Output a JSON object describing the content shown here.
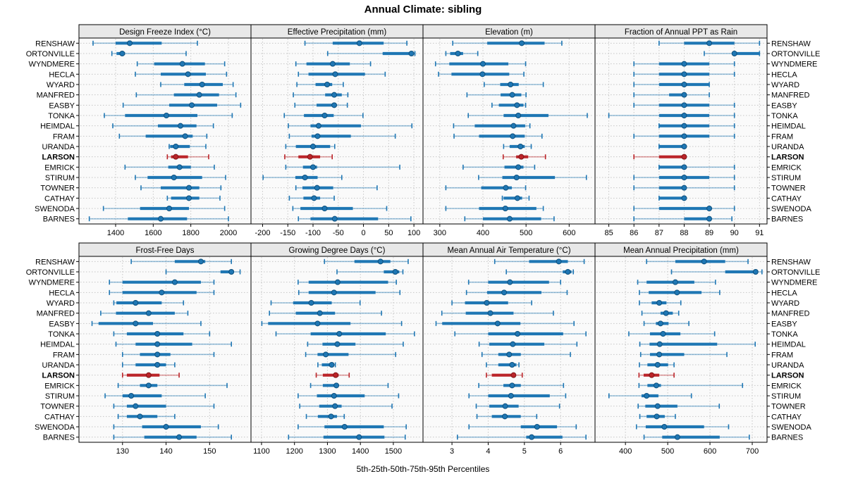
{
  "title": "Annual Climate: sibling",
  "footer": "5th-25th-50th-75th-95th Percentiles",
  "chart_data": {
    "type": "dotplot-percentiles",
    "title": "Annual Climate: sibling",
    "xlabel": "5th-25th-50th-75th-95th Percentiles",
    "percentiles": [
      "5th",
      "25th",
      "50th",
      "75th",
      "95th"
    ],
    "highlight_station": "LARSON",
    "colors": {
      "series": "#1f77b4",
      "series_dark": "#0d4f7c",
      "highlight": "#bb2429",
      "highlight_dark": "#7e1416",
      "strip_bg": "#e8e8e8",
      "panel_bg": "#fafafa",
      "grid": "#c6c6c6",
      "border": "#000000"
    },
    "stations": [
      "RENSHAW",
      "ORTONVILLE",
      "WYNDMERE",
      "HECLA",
      "WYARD",
      "MANFRED",
      "EASBY",
      "TONKA",
      "HEIMDAL",
      "FRAM",
      "URANDA",
      "LARSON",
      "EMRICK",
      "STIRUM",
      "TOWNER",
      "CATHAY",
      "SWENODA",
      "BARNES"
    ],
    "panels": [
      {
        "title": "Design Freeze Index (°C)",
        "row": "top",
        "col": 0,
        "ticks": [
          1400,
          1600,
          1800,
          2000
        ],
        "xlim": [
          1205,
          2120
        ],
        "values": [
          [
            1280,
            1400,
            1475,
            1645,
            1835
          ],
          [
            1380,
            1405,
            1435,
            1450,
            1775
          ],
          [
            1515,
            1605,
            1755,
            1875,
            1980
          ],
          [
            1505,
            1640,
            1785,
            1880,
            1990
          ],
          [
            1640,
            1765,
            1860,
            1970,
            2025
          ],
          [
            1510,
            1710,
            1845,
            1950,
            2040
          ],
          [
            1440,
            1685,
            1805,
            1940,
            2065
          ],
          [
            1340,
            1450,
            1670,
            1835,
            2020
          ],
          [
            1385,
            1625,
            1745,
            1830,
            1920
          ],
          [
            1420,
            1560,
            1770,
            1810,
            1885
          ],
          [
            1685,
            1690,
            1720,
            1795,
            1880
          ],
          [
            1675,
            1695,
            1720,
            1785,
            1895
          ],
          [
            1450,
            1680,
            1740,
            1800,
            1925
          ],
          [
            1505,
            1570,
            1710,
            1860,
            1985
          ],
          [
            1535,
            1640,
            1790,
            1845,
            1960
          ],
          [
            1675,
            1695,
            1790,
            1845,
            1955
          ],
          [
            1335,
            1530,
            1685,
            1790,
            1980
          ],
          [
            1260,
            1465,
            1640,
            1780,
            2000
          ]
        ]
      },
      {
        "title": "Effective Precipitation (mm)",
        "row": "top",
        "col": 1,
        "ticks": [
          -200,
          -150,
          -100,
          -50,
          0,
          50,
          100
        ],
        "xlim": [
          -223,
          118
        ],
        "values": [
          [
            -116,
            -61,
            -8,
            40,
            86
          ],
          [
            -71,
            38,
            95,
            100,
            102
          ],
          [
            -134,
            -113,
            -61,
            -27,
            14
          ],
          [
            -129,
            -109,
            -56,
            3,
            43
          ],
          [
            -132,
            -95,
            -72,
            -62,
            -40
          ],
          [
            -139,
            -76,
            -58,
            -43,
            -31
          ],
          [
            -136,
            -93,
            -58,
            -54,
            -32
          ],
          [
            -157,
            -118,
            -77,
            -59,
            -1
          ],
          [
            -149,
            -105,
            -89,
            -5,
            96
          ],
          [
            -147,
            -103,
            -91,
            -25,
            63
          ],
          [
            -154,
            -134,
            -100,
            -66,
            -57
          ],
          [
            -156,
            -129,
            -106,
            -86,
            -62
          ],
          [
            -154,
            -120,
            -100,
            -92,
            72
          ],
          [
            -199,
            -135,
            -116,
            -91,
            -43
          ],
          [
            -134,
            -121,
            -92,
            -60,
            27
          ],
          [
            -147,
            -119,
            -98,
            -86,
            -58
          ],
          [
            -140,
            -125,
            -77,
            -21,
            46
          ],
          [
            -129,
            -105,
            -57,
            29,
            94
          ]
        ]
      },
      {
        "title": "Elevation (m)",
        "row": "top",
        "col": 2,
        "ticks": [
          300,
          400,
          500,
          600
        ],
        "xlim": [
          261,
          660
        ],
        "values": [
          [
            330,
            410,
            490,
            543,
            583
          ],
          [
            314,
            324,
            342,
            354,
            388
          ],
          [
            290,
            322,
            400,
            459,
            499
          ],
          [
            297,
            327,
            399,
            461,
            495
          ],
          [
            403,
            440,
            464,
            483,
            540
          ],
          [
            363,
            441,
            468,
            489,
            500
          ],
          [
            421,
            437,
            479,
            494,
            499
          ],
          [
            366,
            448,
            482,
            552,
            642
          ],
          [
            332,
            381,
            471,
            498,
            509
          ],
          [
            333,
            391,
            469,
            497,
            537
          ],
          [
            448,
            462,
            487,
            497,
            512
          ],
          [
            447,
            477,
            489,
            505,
            545
          ],
          [
            354,
            450,
            482,
            494,
            520
          ],
          [
            390,
            445,
            478,
            567,
            640
          ],
          [
            314,
            396,
            453,
            467,
            499
          ],
          [
            445,
            448,
            480,
            491,
            507
          ],
          [
            314,
            391,
            452,
            524,
            540
          ],
          [
            358,
            400,
            462,
            535,
            565
          ]
        ]
      },
      {
        "title": "Fraction of Annual PPT as Rain",
        "row": "top",
        "col": 3,
        "ticks": [
          85,
          86,
          87,
          88,
          89,
          90,
          91
        ],
        "xlim": [
          84.45,
          91.3
        ],
        "values": [
          [
            87,
            88,
            89,
            90,
            91
          ],
          [
            88.8,
            90,
            90,
            91,
            91
          ],
          [
            86,
            87,
            88,
            89,
            90
          ],
          [
            86,
            87,
            88,
            89,
            90
          ],
          [
            86,
            87,
            88,
            89,
            89
          ],
          [
            86,
            87.4,
            88,
            88.1,
            89
          ],
          [
            86,
            87,
            88,
            89,
            90
          ],
          [
            85,
            87,
            88,
            89,
            90
          ],
          [
            87,
            87,
            88,
            89,
            90
          ],
          [
            86,
            87,
            88,
            89,
            90
          ],
          [
            87,
            87,
            88,
            88,
            88
          ],
          [
            86,
            87,
            88,
            88,
            88
          ],
          [
            87,
            87,
            88,
            88,
            90
          ],
          [
            86,
            87,
            88,
            89,
            90
          ],
          [
            86,
            87,
            88,
            88,
            90
          ],
          [
            87,
            87,
            88,
            88,
            88
          ],
          [
            86,
            87,
            89,
            89,
            90
          ],
          [
            86,
            88,
            89,
            89,
            89.9
          ]
        ]
      },
      {
        "title": "Frost-Free Days",
        "row": "bottom",
        "col": 0,
        "ticks": [
          130,
          140,
          150
        ],
        "xlim": [
          120,
          159.5
        ],
        "values": [
          [
            132,
            142,
            148,
            149,
            155
          ],
          [
            140,
            152.5,
            155,
            155.5,
            157
          ],
          [
            127,
            130,
            142,
            148,
            151
          ],
          [
            127,
            130,
            139,
            147,
            151
          ],
          [
            128,
            128.6,
            133,
            139,
            144
          ],
          [
            125,
            128.5,
            136,
            142,
            145
          ],
          [
            123,
            124.5,
            133,
            137,
            148
          ],
          [
            128,
            131,
            138,
            144,
            150
          ],
          [
            128.5,
            133,
            138,
            146,
            155
          ],
          [
            130,
            134,
            138,
            141,
            151
          ],
          [
            130,
            133,
            138,
            140,
            142
          ],
          [
            130,
            131,
            136,
            138.5,
            143
          ],
          [
            129,
            134,
            136,
            138,
            154
          ],
          [
            126,
            130,
            132,
            139,
            149
          ],
          [
            128,
            131,
            133,
            140,
            151
          ],
          [
            129,
            131,
            134,
            138,
            142
          ],
          [
            128,
            134.5,
            140,
            148,
            152
          ],
          [
            128,
            135,
            143,
            147,
            155
          ]
        ]
      },
      {
        "title": "Growing Degree Days (°C)",
        "row": "bottom",
        "col": 1,
        "ticks": [
          1100,
          1200,
          1300,
          1400,
          1500
        ],
        "xlim": [
          1068,
          1590
        ],
        "values": [
          [
            1291,
            1382,
            1461,
            1491,
            1545
          ],
          [
            1329,
            1471,
            1506,
            1518,
            1529
          ],
          [
            1211,
            1243,
            1331,
            1484,
            1509
          ],
          [
            1213,
            1243,
            1320,
            1446,
            1520
          ],
          [
            1129,
            1196,
            1251,
            1313,
            1399
          ],
          [
            1124,
            1204,
            1277,
            1323,
            1464
          ],
          [
            1101,
            1120,
            1270,
            1370,
            1525
          ],
          [
            1144,
            1249,
            1336,
            1477,
            1564
          ],
          [
            1240,
            1285,
            1330,
            1385,
            1530
          ],
          [
            1234,
            1270,
            1295,
            1364,
            1507
          ],
          [
            1271,
            1283,
            1313,
            1319,
            1324
          ],
          [
            1266,
            1286,
            1325,
            1334,
            1366
          ],
          [
            1249,
            1286,
            1327,
            1334,
            1484
          ],
          [
            1211,
            1268,
            1320,
            1413,
            1516
          ],
          [
            1216,
            1275,
            1323,
            1343,
            1496
          ],
          [
            1236,
            1271,
            1311,
            1329,
            1351
          ],
          [
            1211,
            1291,
            1352,
            1471,
            1539
          ],
          [
            1182,
            1288,
            1396,
            1473,
            1536
          ]
        ]
      },
      {
        "title": "Mean Annual Air Temperature (°C)",
        "row": "bottom",
        "col": 2,
        "ticks": [
          3,
          4,
          5,
          6
        ],
        "xlim": [
          2.2,
          6.95
        ],
        "values": [
          [
            4.18,
            5.13,
            5.95,
            6.2,
            6.65
          ],
          [
            4.5,
            6.06,
            6.2,
            6.3,
            6.35
          ],
          [
            3.46,
            4.0,
            4.6,
            5.68,
            6.0
          ],
          [
            3.4,
            3.97,
            4.44,
            5.47,
            6.18
          ],
          [
            3.0,
            3.36,
            3.96,
            4.55,
            5.2
          ],
          [
            2.72,
            3.38,
            4.06,
            4.7,
            5.8
          ],
          [
            2.56,
            2.73,
            4.26,
            4.89,
            6.37
          ],
          [
            3.08,
            4.0,
            4.81,
            6.07,
            6.7
          ],
          [
            3.75,
            4.03,
            4.68,
            5.55,
            6.45
          ],
          [
            3.83,
            4.28,
            4.58,
            4.9,
            6.27
          ],
          [
            3.95,
            4.28,
            4.66,
            4.78,
            4.85
          ],
          [
            3.95,
            4.1,
            4.7,
            4.76,
            4.94
          ],
          [
            3.74,
            4.42,
            4.66,
            4.9,
            6.08
          ],
          [
            3.47,
            4.0,
            4.63,
            5.7,
            6.14
          ],
          [
            3.67,
            4.03,
            4.47,
            4.84,
            5.97
          ],
          [
            3.69,
            4.1,
            4.46,
            4.9,
            5.34
          ],
          [
            3.47,
            4.9,
            5.35,
            5.9,
            6.43
          ],
          [
            3.15,
            5.05,
            5.2,
            6.05,
            6.7
          ]
        ]
      },
      {
        "title": "Mean Annual Precipitation (mm)",
        "row": "bottom",
        "col": 3,
        "ticks": [
          400,
          500,
          600,
          700
        ],
        "xlim": [
          328,
          735
        ],
        "values": [
          [
            450,
            518,
            586,
            636,
            690
          ],
          [
            509,
            636,
            708,
            712,
            723
          ],
          [
            429,
            450,
            518,
            563,
            613
          ],
          [
            433,
            455,
            522,
            580,
            623
          ],
          [
            433,
            462,
            480,
            497,
            531
          ],
          [
            439,
            483,
            496,
            512,
            526
          ],
          [
            444,
            472,
            483,
            502,
            550
          ],
          [
            408,
            458,
            489,
            530,
            611
          ],
          [
            434,
            457,
            481,
            617,
            707
          ],
          [
            436,
            458,
            480,
            539,
            640
          ],
          [
            433,
            452,
            476,
            501,
            515
          ],
          [
            432,
            443,
            462,
            480,
            515
          ],
          [
            432,
            452,
            473,
            484,
            677
          ],
          [
            361,
            438,
            450,
            478,
            556
          ],
          [
            430,
            447,
            476,
            523,
            622
          ],
          [
            434,
            450,
            474,
            493,
            518
          ],
          [
            426,
            448,
            492,
            586,
            644
          ],
          [
            444,
            487,
            523,
            623,
            693
          ]
        ]
      }
    ]
  }
}
